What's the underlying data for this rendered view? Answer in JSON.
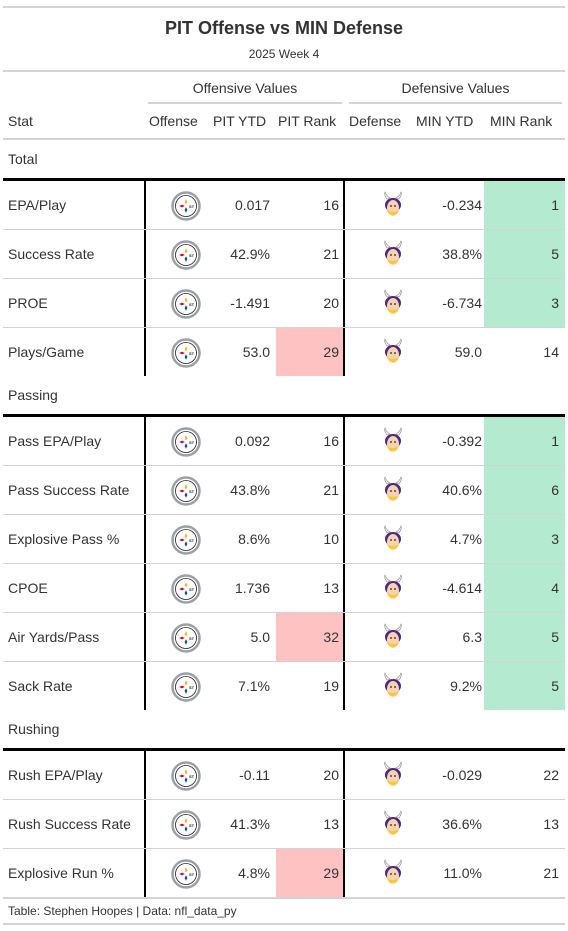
{
  "title": "PIT Offense vs MIN Defense",
  "subtitle": "2025 Week 4",
  "spanners": {
    "offense": "Offensive Values",
    "defense": "Defensive Values"
  },
  "columns": {
    "stat": "Stat",
    "offense": "Offense",
    "pit_ytd": "PIT YTD",
    "pit_rank": "PIT Rank",
    "defense": "Defense",
    "min_ytd": "MIN YTD",
    "min_rank": "MIN Rank"
  },
  "colors": {
    "good_rank": "#b3ead0",
    "bad_rank": "#ffc2c2",
    "steelers_gold": "#ffb612",
    "steelers_red": "#c60c30",
    "steelers_blue": "#00539b",
    "vikings_purple": "#4f2683",
    "vikings_gold": "#ffc62f"
  },
  "icons": {
    "offense_logo": "steelers-logo-icon",
    "defense_logo": "vikings-logo-icon"
  },
  "groups": [
    {
      "name": "Total",
      "rows": [
        {
          "stat": "EPA/Play",
          "pit_ytd": "0.017",
          "pit_rank": "16",
          "pit_highlight": "none",
          "min_ytd": "-0.234",
          "min_rank": "1",
          "min_highlight": "good"
        },
        {
          "stat": "Success Rate",
          "pit_ytd": "42.9%",
          "pit_rank": "21",
          "pit_highlight": "none",
          "min_ytd": "38.8%",
          "min_rank": "5",
          "min_highlight": "good"
        },
        {
          "stat": "PROE",
          "pit_ytd": "-1.491",
          "pit_rank": "20",
          "pit_highlight": "none",
          "min_ytd": "-6.734",
          "min_rank": "3",
          "min_highlight": "good"
        },
        {
          "stat": "Plays/Game",
          "pit_ytd": "53.0",
          "pit_rank": "29",
          "pit_highlight": "bad",
          "min_ytd": "59.0",
          "min_rank": "14",
          "min_highlight": "none"
        }
      ]
    },
    {
      "name": "Passing",
      "rows": [
        {
          "stat": "Pass EPA/Play",
          "pit_ytd": "0.092",
          "pit_rank": "16",
          "pit_highlight": "none",
          "min_ytd": "-0.392",
          "min_rank": "1",
          "min_highlight": "good"
        },
        {
          "stat": "Pass Success Rate",
          "pit_ytd": "43.8%",
          "pit_rank": "21",
          "pit_highlight": "none",
          "min_ytd": "40.6%",
          "min_rank": "6",
          "min_highlight": "good"
        },
        {
          "stat": "Explosive Pass %",
          "pit_ytd": "8.6%",
          "pit_rank": "10",
          "pit_highlight": "none",
          "min_ytd": "4.7%",
          "min_rank": "3",
          "min_highlight": "good"
        },
        {
          "stat": "CPOE",
          "pit_ytd": "1.736",
          "pit_rank": "13",
          "pit_highlight": "none",
          "min_ytd": "-4.614",
          "min_rank": "4",
          "min_highlight": "good"
        },
        {
          "stat": "Air Yards/Pass",
          "pit_ytd": "5.0",
          "pit_rank": "32",
          "pit_highlight": "bad",
          "min_ytd": "6.3",
          "min_rank": "5",
          "min_highlight": "good"
        },
        {
          "stat": "Sack Rate",
          "pit_ytd": "7.1%",
          "pit_rank": "19",
          "pit_highlight": "none",
          "min_ytd": "9.2%",
          "min_rank": "5",
          "min_highlight": "good"
        }
      ]
    },
    {
      "name": "Rushing",
      "rows": [
        {
          "stat": "Rush EPA/Play",
          "pit_ytd": "-0.11",
          "pit_rank": "20",
          "pit_highlight": "none",
          "min_ytd": "-0.029",
          "min_rank": "22",
          "min_highlight": "none"
        },
        {
          "stat": "Rush Success Rate",
          "pit_ytd": "41.3%",
          "pit_rank": "13",
          "pit_highlight": "none",
          "min_ytd": "36.6%",
          "min_rank": "13",
          "min_highlight": "none"
        },
        {
          "stat": "Explosive Run %",
          "pit_ytd": "4.8%",
          "pit_rank": "29",
          "pit_highlight": "bad",
          "min_ytd": "11.0%",
          "min_rank": "21",
          "min_highlight": "none"
        }
      ]
    }
  ],
  "footer": "Table: Stephen Hoopes | Data: nfl_data_py"
}
